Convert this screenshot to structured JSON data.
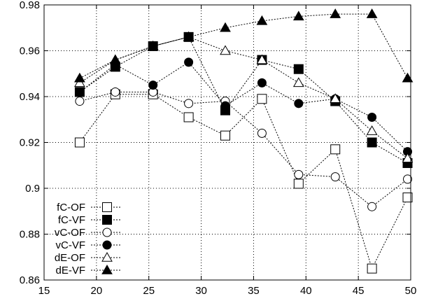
{
  "chart_data": {
    "type": "line",
    "xlim": [
      15,
      50
    ],
    "ylim": [
      0.86,
      0.98
    ],
    "xticks": [
      15,
      20,
      25,
      30,
      35,
      40,
      45,
      50
    ],
    "yticks": [
      0.86,
      0.88,
      0.9,
      0.92,
      0.94,
      0.96,
      0.98
    ],
    "xtick_labels": [
      "15",
      "20",
      "25",
      "30",
      "35",
      "40",
      "45",
      "50"
    ],
    "ytick_labels": [
      "0.86",
      "0.88",
      "0.9",
      "0.92",
      "0.94",
      "0.96",
      "0.98"
    ],
    "grid": true,
    "legend_position": "bottom-left",
    "line_style": "dotted",
    "color": "#000000",
    "series": [
      {
        "name": "fC-OF",
        "marker": "square-open",
        "x": [
          18.4,
          21.8,
          25.4,
          28.8,
          32.3,
          35.8,
          39.3,
          42.8,
          46.3,
          49.7
        ],
        "y": [
          0.92,
          0.941,
          0.941,
          0.931,
          0.923,
          0.939,
          0.902,
          0.917,
          0.865,
          0.896
        ]
      },
      {
        "name": "fC-VF",
        "marker": "square-filled",
        "x": [
          18.4,
          21.8,
          25.4,
          28.8,
          32.3,
          35.8,
          39.3,
          42.8,
          46.3,
          49.7
        ],
        "y": [
          0.942,
          0.953,
          0.962,
          0.966,
          0.934,
          0.956,
          0.952,
          0.938,
          0.92,
          0.911
        ]
      },
      {
        "name": "vC-OF",
        "marker": "circle-open",
        "x": [
          18.4,
          21.8,
          25.4,
          28.8,
          32.3,
          35.8,
          39.3,
          42.8,
          46.3,
          49.7
        ],
        "y": [
          0.938,
          0.942,
          0.942,
          0.937,
          0.938,
          0.924,
          0.906,
          0.905,
          0.892,
          0.904
        ]
      },
      {
        "name": "vC-VF",
        "marker": "circle-filled",
        "x": [
          18.4,
          21.8,
          25.4,
          28.8,
          32.3,
          35.8,
          39.3,
          42.8,
          46.3,
          49.7
        ],
        "y": [
          0.942,
          0.954,
          0.945,
          0.955,
          0.936,
          0.946,
          0.937,
          0.939,
          0.931,
          0.916
        ]
      },
      {
        "name": "dE-OF",
        "marker": "triangle-open",
        "x": [
          18.4,
          21.8,
          25.4,
          28.8,
          32.3,
          35.8,
          39.3,
          42.8,
          46.3,
          49.7
        ],
        "y": [
          0.946,
          0.956,
          0.962,
          0.966,
          0.96,
          0.956,
          0.946,
          0.939,
          0.925,
          0.913
        ]
      },
      {
        "name": "dE-VF",
        "marker": "triangle-filled",
        "x": [
          18.4,
          21.8,
          25.4,
          28.8,
          32.3,
          35.8,
          39.3,
          42.8,
          46.3,
          49.7
        ],
        "y": [
          0.948,
          0.956,
          0.962,
          0.966,
          0.97,
          0.973,
          0.975,
          0.976,
          0.976,
          0.948
        ]
      }
    ]
  }
}
